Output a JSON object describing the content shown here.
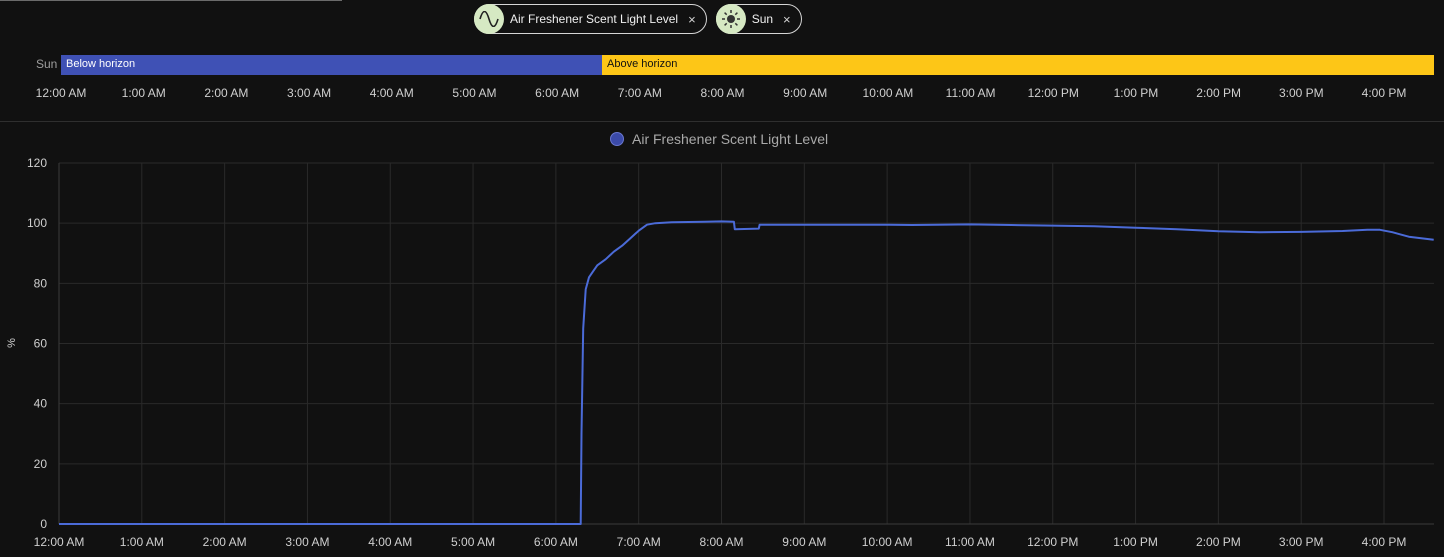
{
  "filters": [
    {
      "label": "Air Freshener Scent Light Level",
      "icon": "sine-wave-icon",
      "close": "×"
    },
    {
      "label": "Sun",
      "icon": "sun-icon",
      "close": "×"
    }
  ],
  "timeline": {
    "row_label": "Sun",
    "segments": [
      {
        "label": "Below horizon",
        "color": "#3f51b5"
      },
      {
        "label": "Above horizon",
        "color": "#fdc617"
      }
    ],
    "ticks": [
      "12:00 AM",
      "1:00 AM",
      "2:00 AM",
      "3:00 AM",
      "4:00 AM",
      "5:00 AM",
      "6:00 AM",
      "7:00 AM",
      "8:00 AM",
      "9:00 AM",
      "10:00 AM",
      "11:00 AM",
      "12:00 PM",
      "1:00 PM",
      "2:00 PM",
      "3:00 PM",
      "4:00 PM"
    ]
  },
  "chart_data": {
    "type": "line",
    "ylabel": "%",
    "ylim": [
      0,
      120
    ],
    "yticks": [
      0,
      20,
      40,
      60,
      80,
      100,
      120
    ],
    "xlim": [
      0,
      16.6
    ],
    "x_tick_labels": [
      "12:00 AM",
      "1:00 AM",
      "2:00 AM",
      "3:00 AM",
      "4:00 AM",
      "5:00 AM",
      "6:00 AM",
      "7:00 AM",
      "8:00 AM",
      "9:00 AM",
      "10:00 AM",
      "11:00 AM",
      "12:00 PM",
      "1:00 PM",
      "2:00 PM",
      "3:00 PM",
      "4:00 PM"
    ],
    "grid": true,
    "legend": "top-center",
    "series": [
      {
        "name": "Air Freshener Scent Light Level",
        "color": "#4b6bd8",
        "x": [
          0,
          6.3,
          6.31,
          6.33,
          6.36,
          6.4,
          6.45,
          6.5,
          6.6,
          6.7,
          6.8,
          6.9,
          7.0,
          7.1,
          7.2,
          7.4,
          7.6,
          7.8,
          8.0,
          8.15,
          8.16,
          8.45,
          8.46,
          9.0,
          9.5,
          10.0,
          10.3,
          10.6,
          11.0,
          11.5,
          12.0,
          12.5,
          13.0,
          13.5,
          14.0,
          14.5,
          15.0,
          15.5,
          15.8,
          15.95,
          16.1,
          16.3,
          16.6
        ],
        "y": [
          0,
          0,
          30,
          65,
          78,
          82,
          84,
          86,
          88,
          90.5,
          92.5,
          95,
          97.5,
          99.5,
          100,
          100.3,
          100.4,
          100.5,
          100.6,
          100.5,
          98,
          98.2,
          99.5,
          99.5,
          99.5,
          99.5,
          99.4,
          99.5,
          99.6,
          99.4,
          99.2,
          99,
          98.5,
          98,
          97.3,
          97,
          97.1,
          97.4,
          97.8,
          97.8,
          97,
          95.5,
          94.5
        ]
      }
    ]
  }
}
